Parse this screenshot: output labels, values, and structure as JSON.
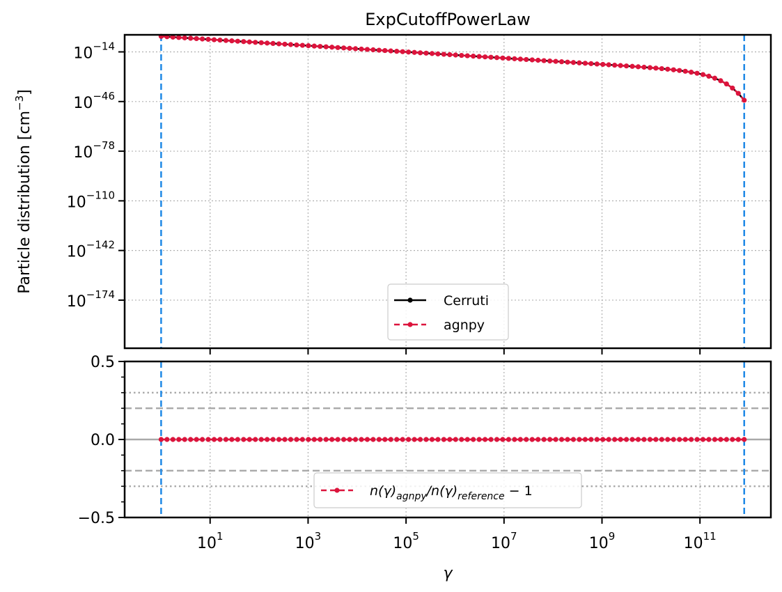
{
  "chart_data": [
    {
      "type": "line",
      "panel": "top",
      "title": "ExpCutoffPowerLaw",
      "ylabel": "Particle distribution [cm^-3]",
      "yscale": "log",
      "xscale": "log",
      "xlim": [
        0.18,
        2800000000000.0
      ],
      "ylim_log10": [
        -205,
        -3
      ],
      "x_ticks_log10": [
        1,
        3,
        5,
        7,
        9,
        11
      ],
      "y_ticks_log10": [
        -14,
        -46,
        -78,
        -110,
        -142,
        -174
      ],
      "grid": true,
      "vertical_lines": {
        "gamma_min": 1,
        "gamma_max": 800000000000.0,
        "color": "#1e88e5"
      },
      "legend": {
        "placement": "lower-center",
        "entries": [
          {
            "label": "Cerruti",
            "color": "#000000",
            "style": "solid"
          },
          {
            "label": "agnpy",
            "color": "#dc143c",
            "style": "dashed"
          }
        ]
      },
      "model": {
        "log10_n0": -4,
        "spectral_index": 2.0,
        "gamma_cutoff": 20000000000.0,
        "log10_gamma_min": 0,
        "log10_gamma_max": 11.9031,
        "points": 100
      },
      "series": [
        {
          "name": "Cerruti",
          "color": "#000000",
          "line": "solid",
          "marker": "dot"
        },
        {
          "name": "agnpy",
          "color": "#dc143c",
          "line": "dashed",
          "marker": "dot"
        }
      ]
    },
    {
      "type": "line",
      "panel": "bottom",
      "xlabel": "γ",
      "xscale": "log",
      "ylim": [
        -0.5,
        0.5
      ],
      "y_ticks": [
        -0.5,
        0.0,
        0.5
      ],
      "y_tick_labels": [
        "−0.5",
        "0.0",
        "0.5"
      ],
      "x_tick_labels": [
        {
          "base": "10",
          "exp": "1"
        },
        {
          "base": "10",
          "exp": "3"
        },
        {
          "base": "10",
          "exp": "5"
        },
        {
          "base": "10",
          "exp": "7"
        },
        {
          "base": "10",
          "exp": "9"
        },
        {
          "base": "10",
          "exp": "11"
        }
      ],
      "reference_lines": [
        {
          "y": 0.0,
          "style": "solid"
        },
        {
          "y": 0.2,
          "style": "dashed"
        },
        {
          "y": -0.2,
          "style": "dashed"
        },
        {
          "y": 0.3,
          "style": "dotted"
        },
        {
          "y": -0.3,
          "style": "dotted"
        }
      ],
      "legend": {
        "placement": "lower-center",
        "entries": [
          {
            "label_parts": [
              "n(γ)",
              "agnpy",
              "/n(γ)",
              "reference",
              " − 1"
            ],
            "color": "#dc143c",
            "style": "dashed"
          }
        ]
      },
      "series": [
        {
          "name": "ratio",
          "color": "#dc143c",
          "line": "dashed",
          "marker": "dot",
          "constant_value": 0.0,
          "points": 100
        }
      ]
    }
  ],
  "labels": {
    "title": "ExpCutoffPowerLaw",
    "ylabel_main": "Particle distribution [cm",
    "ylabel_unit_exp": "−3",
    "ylabel_close": "]",
    "xlabel": "γ",
    "y_top_tick_labels": [
      {
        "base": "10",
        "exp": "−14"
      },
      {
        "base": "10",
        "exp": "−46"
      },
      {
        "base": "10",
        "exp": "−78"
      },
      {
        "base": "10",
        "exp": "−110"
      },
      {
        "base": "10",
        "exp": "−142"
      },
      {
        "base": "10",
        "exp": "−174"
      }
    ],
    "legend_top": [
      "Cerruti",
      "agnpy"
    ]
  }
}
